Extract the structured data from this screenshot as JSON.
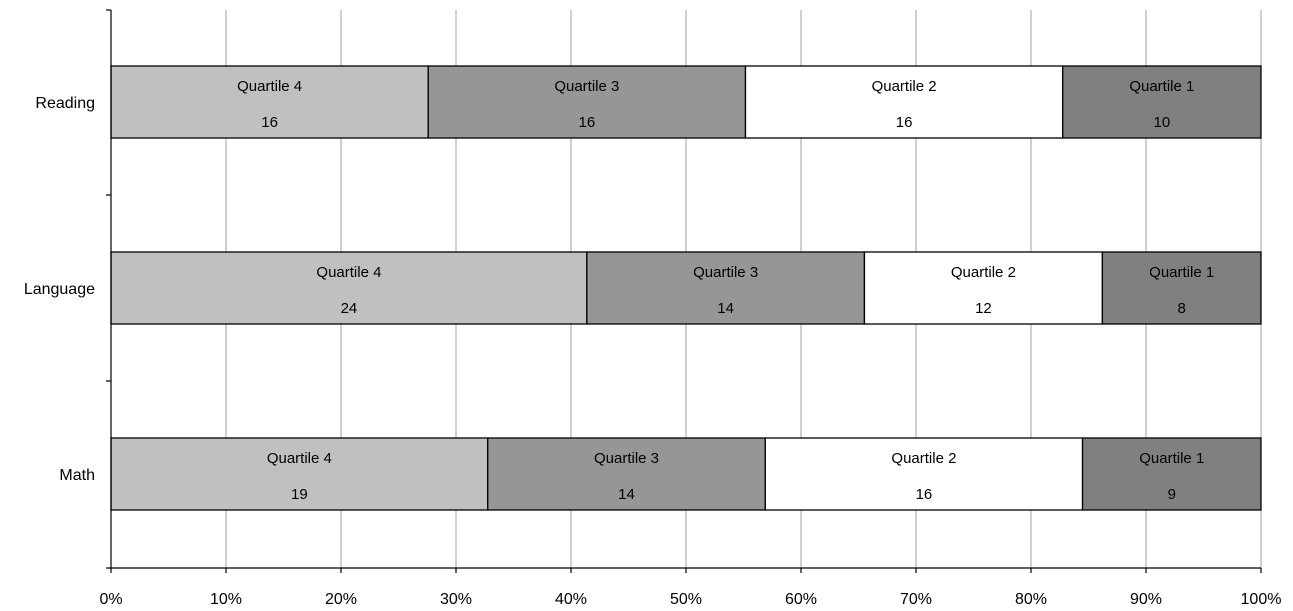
{
  "chart_data": {
    "type": "bar",
    "orientation": "horizontal",
    "stacking": "percent",
    "title": "",
    "xlabel": "",
    "ylabel": "",
    "categories": [
      "Reading",
      "Language",
      "Math"
    ],
    "series": [
      {
        "name": "Quartile 4",
        "values": [
          16,
          24,
          19
        ],
        "color": "#c0c0c0"
      },
      {
        "name": "Quartile 3",
        "values": [
          16,
          14,
          14
        ],
        "color": "#969696"
      },
      {
        "name": "Quartile 2",
        "values": [
          16,
          12,
          16
        ],
        "color": "#ffffff"
      },
      {
        "name": "Quartile 1",
        "values": [
          10,
          8,
          9
        ],
        "color": "#808080"
      }
    ],
    "xlim": [
      0,
      100
    ],
    "x_ticks": [
      "0%",
      "10%",
      "20%",
      "30%",
      "40%",
      "50%",
      "60%",
      "70%",
      "80%",
      "90%",
      "100%"
    ],
    "grid": "vertical",
    "legend": "none",
    "data_labels": "series name and value inside segment"
  }
}
